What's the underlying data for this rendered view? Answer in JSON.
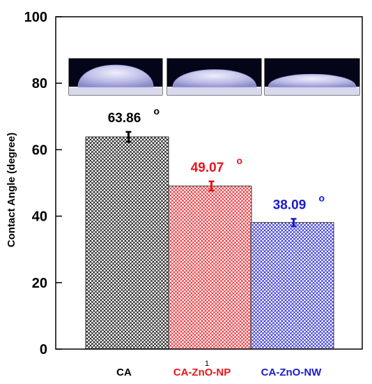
{
  "chart_data": {
    "type": "bar",
    "title": "",
    "xlabel": "",
    "ylabel": "Contact Angle (degree)",
    "ylim": [
      0,
      100
    ],
    "yticks": [
      0,
      20,
      40,
      60,
      80,
      100
    ],
    "categories": [
      "CA",
      "CA-ZnO-NP",
      "CA-ZnO-NW"
    ],
    "values": [
      63.86,
      49.07,
      38.09
    ],
    "errors": [
      1.5,
      1.4,
      1.1
    ],
    "value_labels": [
      "63.86",
      "49.07",
      "38.09"
    ],
    "degree_symbol": "o",
    "colors": [
      "#000000",
      "#e8141b",
      "#1a1ad0"
    ],
    "fill_pattern": "crosshatch",
    "legend": "none",
    "grid": false,
    "axis_note": "1",
    "insets": [
      {
        "name": "CA droplet photo",
        "shape": "tall"
      },
      {
        "name": "CA-ZnO-NP droplet photo",
        "shape": "medium"
      },
      {
        "name": "CA-ZnO-NW droplet photo",
        "shape": "flat"
      }
    ]
  }
}
